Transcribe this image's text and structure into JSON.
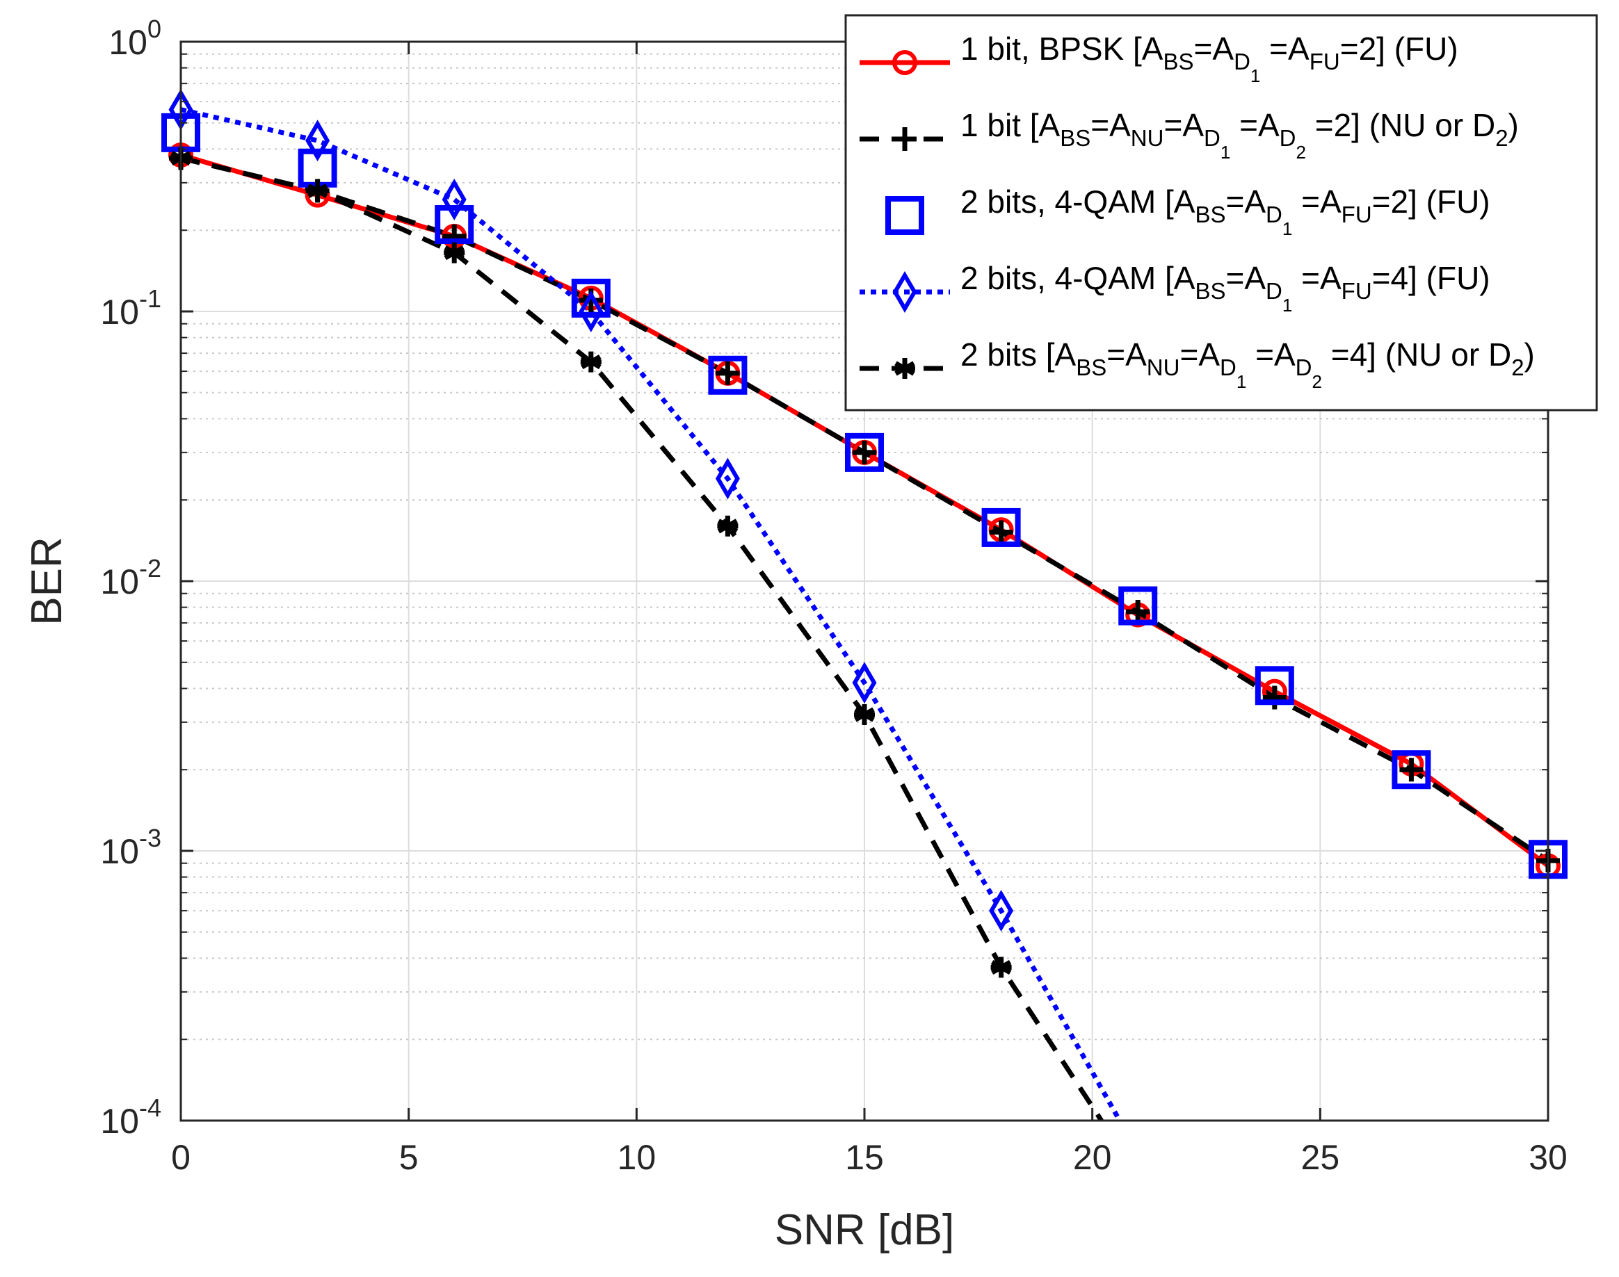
{
  "chart_data": {
    "type": "line",
    "title": "",
    "xlabel": "SNR [dB]",
    "ylabel": "BER",
    "xlim": [
      0,
      30
    ],
    "ylim": [
      0.0001,
      1
    ],
    "yscale": "log",
    "grid": true,
    "xticks": [
      0,
      5,
      10,
      15,
      20,
      25,
      30
    ],
    "xtick_labels": [
      "0",
      "5",
      "10",
      "15",
      "20",
      "25",
      "30"
    ],
    "ytick_labels": [
      {
        "base": "10",
        "exp": "0",
        "value": 1
      },
      {
        "base": "10",
        "exp": "-1",
        "value": 0.1
      },
      {
        "base": "10",
        "exp": "-2",
        "value": 0.01
      },
      {
        "base": "10",
        "exp": "-3",
        "value": 0.001
      },
      {
        "base": "10",
        "exp": "-4",
        "value": 0.0001
      }
    ],
    "legend_position": "top-right",
    "series": [
      {
        "id": "s1",
        "name": "1 bit, BPSK [A_BS=A_D1=A_FU=2] (FU)",
        "color": "#ff0000",
        "line": "solid",
        "marker": "circle",
        "x": [
          0,
          3,
          6,
          9,
          12,
          15,
          18,
          21,
          24,
          27,
          30
        ],
        "y": [
          0.38,
          0.27,
          0.19,
          0.112,
          0.059,
          0.03,
          0.0155,
          0.0075,
          0.0039,
          0.0021,
          0.00088
        ],
        "legend": [
          {
            "t": "1 bit, BPSK [A",
            "s": "n"
          },
          {
            "t": "BS",
            "s": "sub"
          },
          {
            "t": "=A",
            "s": "n"
          },
          {
            "t": "D",
            "s": "sub"
          },
          {
            "t": "1",
            "s": "sub2"
          },
          {
            "t": " =A",
            "s": "n"
          },
          {
            "t": "FU",
            "s": "sub"
          },
          {
            "t": "=2]  (FU)",
            "s": "n"
          }
        ]
      },
      {
        "id": "s2",
        "name": "1 bit [A_BS=A_NU=A_D1=A_D2=2] (NU or D2)",
        "color": "#000000",
        "line": "dashed",
        "marker": "plus",
        "x": [
          0,
          3,
          6,
          9,
          12,
          15,
          18,
          21,
          24,
          27,
          30
        ],
        "y": [
          0.37,
          0.28,
          0.19,
          0.11,
          0.059,
          0.03,
          0.0152,
          0.0077,
          0.0037,
          0.002,
          0.00092
        ],
        "legend": [
          {
            "t": "1 bit [A",
            "s": "n"
          },
          {
            "t": "BS",
            "s": "sub"
          },
          {
            "t": "=A",
            "s": "n"
          },
          {
            "t": "NU",
            "s": "sub"
          },
          {
            "t": "=A",
            "s": "n"
          },
          {
            "t": "D",
            "s": "sub"
          },
          {
            "t": "1",
            "s": "sub2"
          },
          {
            "t": " =A",
            "s": "n"
          },
          {
            "t": "D",
            "s": "sub"
          },
          {
            "t": "2",
            "s": "sub2"
          },
          {
            "t": " =2]  (NU or D",
            "s": "n"
          },
          {
            "t": "2",
            "s": "sub"
          },
          {
            "t": ")",
            "s": "n"
          }
        ]
      },
      {
        "id": "s3",
        "name": "2 bits, 4-QAM [A_BS=A_D1=A_FU=2] (FU)",
        "color": "#0000ff",
        "line": "none",
        "marker": "square",
        "x": [
          0,
          3,
          6,
          9,
          12,
          15,
          18,
          21,
          24,
          27,
          30
        ],
        "y": [
          0.46,
          0.34,
          0.21,
          0.112,
          0.058,
          0.03,
          0.0158,
          0.0081,
          0.0041,
          0.002,
          0.00093
        ],
        "legend": [
          {
            "t": "2 bits, 4-QAM [A",
            "s": "n"
          },
          {
            "t": "BS",
            "s": "sub"
          },
          {
            "t": "=A",
            "s": "n"
          },
          {
            "t": "D",
            "s": "sub"
          },
          {
            "t": "1",
            "s": "sub2"
          },
          {
            "t": " =A",
            "s": "n"
          },
          {
            "t": "FU",
            "s": "sub"
          },
          {
            "t": "=2]  (FU)",
            "s": "n"
          }
        ]
      },
      {
        "id": "s4",
        "name": "2 bits, 4-QAM [A_BS=A_D1=A_FU=4] (FU)",
        "color": "#0000ff",
        "line": "dotted",
        "marker": "diamond",
        "x": [
          0,
          3,
          6,
          9,
          12,
          15,
          18,
          20.6
        ],
        "y": [
          0.56,
          0.43,
          0.26,
          0.1,
          0.024,
          0.0042,
          0.0006,
          0.0001
        ],
        "marker_count": 7,
        "legend": [
          {
            "t": "2 bits, 4-QAM [A",
            "s": "n"
          },
          {
            "t": "BS",
            "s": "sub"
          },
          {
            "t": "=A",
            "s": "n"
          },
          {
            "t": "D",
            "s": "sub"
          },
          {
            "t": "1",
            "s": "sub2"
          },
          {
            "t": " =A",
            "s": "n"
          },
          {
            "t": "FU",
            "s": "sub"
          },
          {
            "t": "=4]  (FU)",
            "s": "n"
          }
        ]
      },
      {
        "id": "s5",
        "name": "2 bits [A_BS=A_NU=A_D1=A_D2=4] (NU or D2)",
        "color": "#000000",
        "line": "dashed",
        "marker": "asterisk",
        "x": [
          0,
          3,
          6,
          9,
          12,
          15,
          18,
          20.2
        ],
        "y": [
          0.37,
          0.28,
          0.165,
          0.065,
          0.016,
          0.0032,
          0.00037,
          0.0001
        ],
        "marker_count": 7,
        "legend": [
          {
            "t": "2 bits [A",
            "s": "n"
          },
          {
            "t": "BS",
            "s": "sub"
          },
          {
            "t": "=A",
            "s": "n"
          },
          {
            "t": "NU",
            "s": "sub"
          },
          {
            "t": "=A",
            "s": "n"
          },
          {
            "t": "D",
            "s": "sub"
          },
          {
            "t": "1",
            "s": "sub2"
          },
          {
            "t": " =A",
            "s": "n"
          },
          {
            "t": "D",
            "s": "sub"
          },
          {
            "t": "2",
            "s": "sub2"
          },
          {
            "t": " =4]  (NU or D",
            "s": "n"
          },
          {
            "t": "2",
            "s": "sub"
          },
          {
            "t": ")",
            "s": "n"
          }
        ]
      }
    ]
  }
}
